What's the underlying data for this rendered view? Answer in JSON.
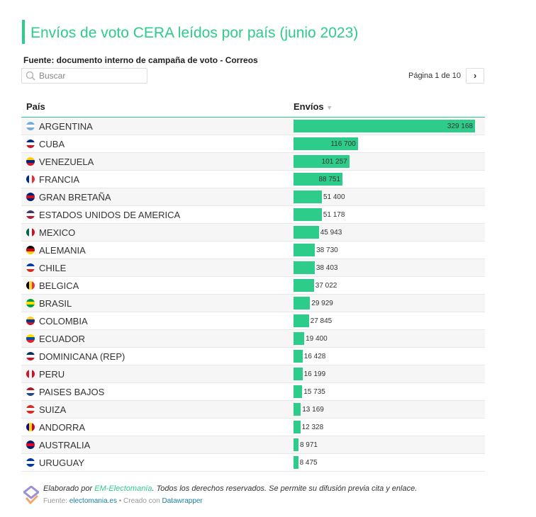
{
  "title": "Envíos de voto CERA leídos por país (junio 2023)",
  "subtitle": "Fuente: documento interno de campaña de voto - Correos",
  "search": {
    "placeholder": "Buscar"
  },
  "pagination": {
    "label": "Página 1 de 10",
    "next": "›"
  },
  "footer": {
    "prefix": "Elaborado por ",
    "org": "EM-Electomanía",
    "rest": ". Todos los derechos reservados. Se permite su difusión previa cita y enlace.",
    "source_label": "Fuente: ",
    "source": "electomania.es",
    "sep": " • Creado con ",
    "tool": "Datawrapper"
  },
  "colors": {
    "accent": "#2ecc8a"
  },
  "chart_data": {
    "type": "table",
    "columns": [
      "País",
      "Envíos"
    ],
    "sort_indicator": "▼",
    "max": 329168,
    "rows": [
      {
        "country": "ARGENTINA",
        "value": 329168,
        "label": "329 168",
        "flag": [
          "#74acdf",
          "#fff",
          "#74acdf"
        ]
      },
      {
        "country": "CUBA",
        "value": 116700,
        "label": "116 700",
        "flag": [
          "#002a8f",
          "#fff",
          "#cf142b"
        ]
      },
      {
        "country": "VENEZUELA",
        "value": 101257,
        "label": "101 257",
        "flag": [
          "#ffcc00",
          "#00247d",
          "#cf142b"
        ]
      },
      {
        "country": "FRANCIA",
        "value": 88751,
        "label": "88 751",
        "flag": [
          "#002395",
          "#fff",
          "#ed2939"
        ],
        "v": true
      },
      {
        "country": "GRAN BRETAÑA",
        "value": 51400,
        "label": "51 400",
        "flag": [
          "#012169",
          "#c8102e",
          "#012169"
        ]
      },
      {
        "country": "ESTADOS UNIDOS DE AMERICA",
        "value": 51178,
        "label": "51 178",
        "flag": [
          "#3c3b6e",
          "#fff",
          "#b22234"
        ]
      },
      {
        "country": "MEXICO",
        "value": 45943,
        "label": "45 943",
        "flag": [
          "#006847",
          "#fff",
          "#ce1126"
        ],
        "v": true
      },
      {
        "country": "ALEMANIA",
        "value": 38730,
        "label": "38 730",
        "flag": [
          "#000",
          "#dd0000",
          "#ffce00"
        ]
      },
      {
        "country": "CHILE",
        "value": 38403,
        "label": "38 403",
        "flag": [
          "#0039a6",
          "#fff",
          "#d52b1e"
        ]
      },
      {
        "country": "BELGICA",
        "value": 37022,
        "label": "37 022",
        "flag": [
          "#000",
          "#fdda24",
          "#ef3340"
        ],
        "v": true
      },
      {
        "country": "BRASIL",
        "value": 29929,
        "label": "29 929",
        "flag": [
          "#009c3b",
          "#ffdf00",
          "#009c3b"
        ]
      },
      {
        "country": "COLOMBIA",
        "value": 27845,
        "label": "27 845",
        "flag": [
          "#fcd116",
          "#003893",
          "#ce1126"
        ]
      },
      {
        "country": "ECUADOR",
        "value": 19400,
        "label": "19 400",
        "flag": [
          "#ffdd00",
          "#034ea2",
          "#ed1c24"
        ]
      },
      {
        "country": "DOMINICANA (REP)",
        "value": 16428,
        "label": "16 428",
        "flag": [
          "#002d62",
          "#fff",
          "#ce1126"
        ]
      },
      {
        "country": "PERU",
        "value": 16199,
        "label": "16 199",
        "flag": [
          "#d91023",
          "#fff",
          "#d91023"
        ],
        "v": true
      },
      {
        "country": "PAISES BAJOS",
        "value": 15735,
        "label": "15 735",
        "flag": [
          "#ae1c28",
          "#fff",
          "#21468b"
        ]
      },
      {
        "country": "SUIZA",
        "value": 13169,
        "label": "13 169",
        "flag": [
          "#d52b1e",
          "#fff",
          "#d52b1e"
        ]
      },
      {
        "country": "ANDORRA",
        "value": 12328,
        "label": "12 328",
        "flag": [
          "#10069f",
          "#fedf00",
          "#d50032"
        ],
        "v": true
      },
      {
        "country": "AUSTRALIA",
        "value": 8971,
        "label": "8 971",
        "flag": [
          "#012169",
          "#e4002b",
          "#012169"
        ]
      },
      {
        "country": "URUGUAY",
        "value": 8475,
        "label": "8 475",
        "flag": [
          "#0038a8",
          "#fff",
          "#0038a8"
        ]
      }
    ]
  }
}
